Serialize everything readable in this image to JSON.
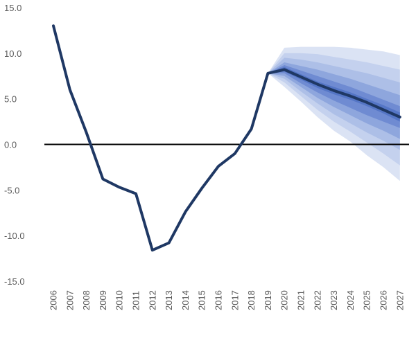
{
  "chart_data": {
    "type": "line",
    "title": "",
    "xlabel": "",
    "ylabel": "",
    "ylim": [
      -15,
      15
    ],
    "y_ticks": [
      15,
      10,
      5,
      0,
      -5,
      -10,
      -15
    ],
    "y_tick_labels": [
      "15.0",
      "10.0",
      "5.0",
      "0.0",
      "-5.0",
      "-10.0",
      "-15.0"
    ],
    "categories": [
      "2006",
      "2007",
      "2008",
      "2009",
      "2010",
      "2011",
      "2012",
      "2013",
      "2014",
      "2015",
      "2016",
      "2017",
      "2018",
      "2019",
      "2020",
      "2021",
      "2022",
      "2023",
      "2024",
      "2025",
      "2026",
      "2027"
    ],
    "grid": false,
    "zero_line": true,
    "series": [
      {
        "type": "line",
        "color": "#1f3864",
        "x": [
          "2006",
          "2007",
          "2008",
          "2009",
          "2010",
          "2011",
          "2012",
          "2013",
          "2014",
          "2015",
          "2016",
          "2017",
          "2018",
          "2019",
          "2020",
          "2021",
          "2022",
          "2023",
          "2024",
          "2025",
          "2026",
          "2027"
        ],
        "values": [
          13.0,
          6.0,
          1.3,
          -3.8,
          -4.7,
          -5.4,
          -11.6,
          -10.8,
          -7.4,
          -4.8,
          -2.4,
          -1.0,
          1.7,
          7.8,
          8.2,
          7.4,
          6.6,
          5.9,
          5.3,
          4.6,
          3.8,
          3.0
        ]
      }
    ],
    "fan": {
      "start": "2019",
      "x": [
        "2019",
        "2020",
        "2021",
        "2022",
        "2023",
        "2024",
        "2025",
        "2026",
        "2027"
      ],
      "colors": [
        "#dbe3f4",
        "#c4d1ee",
        "#adbfe7",
        "#8ea6dd",
        "#6f8bd2",
        "#5576c6"
      ],
      "bands": [
        {
          "upper": [
            7.8,
            10.6,
            10.7,
            10.7,
            10.7,
            10.6,
            10.4,
            10.2,
            9.8
          ],
          "lower": [
            7.8,
            6.3,
            4.7,
            3.0,
            1.5,
            0.3,
            -1.2,
            -2.5,
            -4.0
          ]
        },
        {
          "upper": [
            7.8,
            10.0,
            10.0,
            9.9,
            9.6,
            9.3,
            9.0,
            8.6,
            8.2
          ],
          "lower": [
            7.8,
            6.8,
            5.3,
            3.8,
            2.5,
            1.4,
            0.2,
            -1.0,
            -2.3
          ]
        },
        {
          "upper": [
            7.8,
            9.5,
            9.3,
            9.0,
            8.6,
            8.2,
            7.8,
            7.3,
            6.8
          ],
          "lower": [
            7.8,
            7.2,
            5.8,
            4.5,
            3.3,
            2.3,
            1.3,
            0.4,
            -0.6
          ]
        },
        {
          "upper": [
            7.8,
            9.0,
            8.6,
            8.2,
            7.7,
            7.2,
            6.6,
            6.0,
            5.4
          ],
          "lower": [
            7.8,
            7.5,
            6.3,
            5.1,
            4.1,
            3.2,
            2.3,
            1.5,
            0.6
          ]
        },
        {
          "upper": [
            7.8,
            8.7,
            8.1,
            7.5,
            6.9,
            6.3,
            5.6,
            4.9,
            4.2
          ],
          "lower": [
            7.8,
            7.8,
            6.7,
            5.7,
            4.8,
            4.0,
            3.2,
            2.5,
            1.8
          ]
        },
        {
          "upper": [
            7.8,
            8.5,
            7.7,
            6.9,
            6.3,
            5.7,
            5.0,
            4.3,
            3.5
          ],
          "lower": [
            7.8,
            8.0,
            7.1,
            6.2,
            5.5,
            4.9,
            4.2,
            3.4,
            2.5
          ]
        }
      ]
    }
  }
}
